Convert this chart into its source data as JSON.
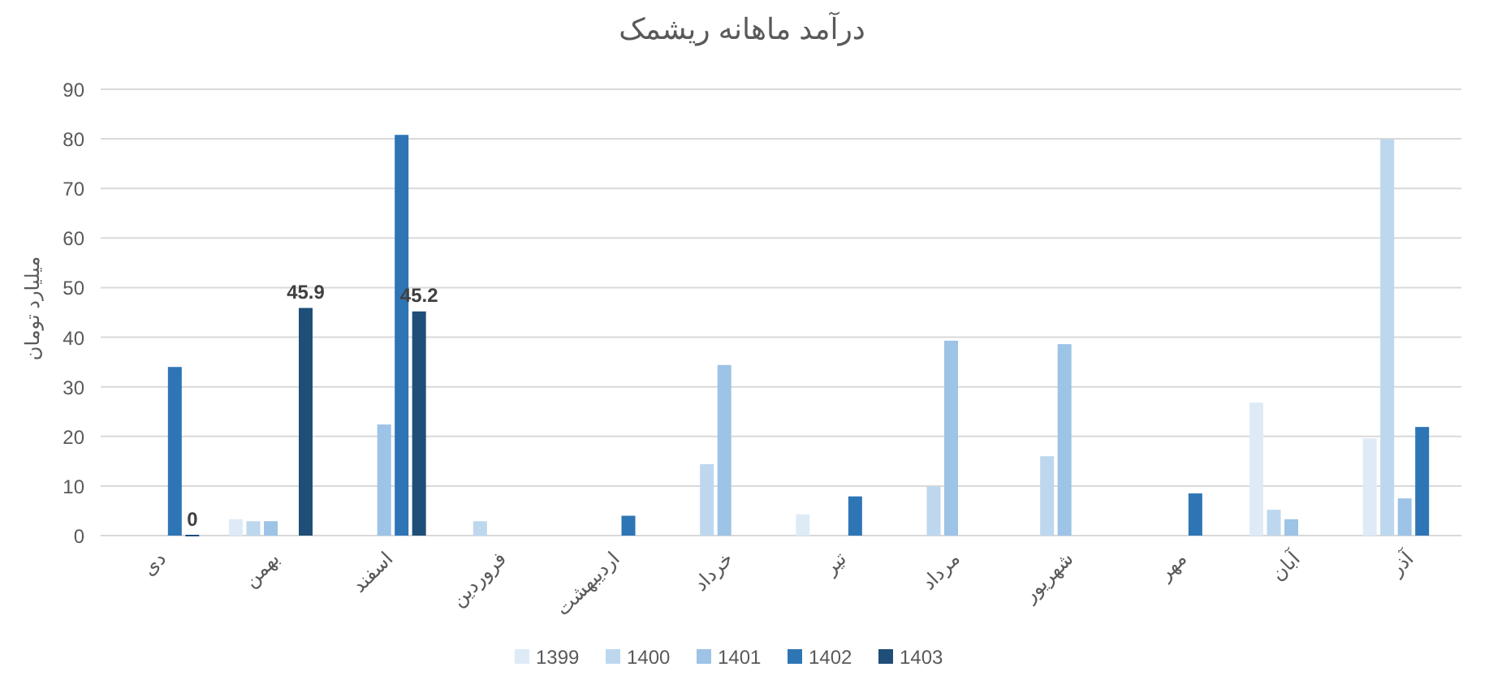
{
  "chart_data": {
    "type": "bar",
    "title": "درآمد ماهانه ریشمک",
    "ylabel": "میلیارد تومان",
    "categories": [
      "دی",
      "بهمن",
      "اسفند",
      "فروردین",
      "اردیبهشت",
      "خرداد",
      "تیر",
      "مرداد",
      "شهریور",
      "مهر",
      "آبان",
      "آذر"
    ],
    "series": [
      {
        "name": "1399",
        "color": "#deebf7",
        "values": [
          null,
          3.3,
          null,
          null,
          null,
          null,
          4.3,
          null,
          null,
          null,
          26.8,
          19.6
        ]
      },
      {
        "name": "1400",
        "color": "#bdd7ee",
        "values": [
          null,
          2.9,
          null,
          2.9,
          null,
          14.4,
          null,
          9.9,
          16.0,
          null,
          5.2,
          79.9
        ]
      },
      {
        "name": "1401",
        "color": "#9dc3e6",
        "values": [
          null,
          2.9,
          22.4,
          null,
          null,
          34.4,
          null,
          39.3,
          38.6,
          null,
          3.3,
          7.5
        ]
      },
      {
        "name": "1402",
        "color": "#2e75b6",
        "values": [
          34.0,
          null,
          80.8,
          null,
          4.0,
          null,
          7.9,
          null,
          null,
          8.5,
          null,
          21.9
        ]
      },
      {
        "name": "1403",
        "color": "#1f4e79",
        "values": [
          0,
          45.9,
          45.2,
          null,
          null,
          null,
          null,
          null,
          null,
          null,
          null,
          null
        ],
        "value_labels": [
          "0",
          "45.9",
          "45.2",
          null,
          null,
          null,
          null,
          null,
          null,
          null,
          null,
          null
        ]
      }
    ],
    "ylim": [
      0,
      90
    ],
    "yticks": [
      0,
      10,
      20,
      30,
      40,
      50,
      60,
      70,
      80,
      90
    ],
    "grid": "y",
    "legend": "bottom"
  }
}
